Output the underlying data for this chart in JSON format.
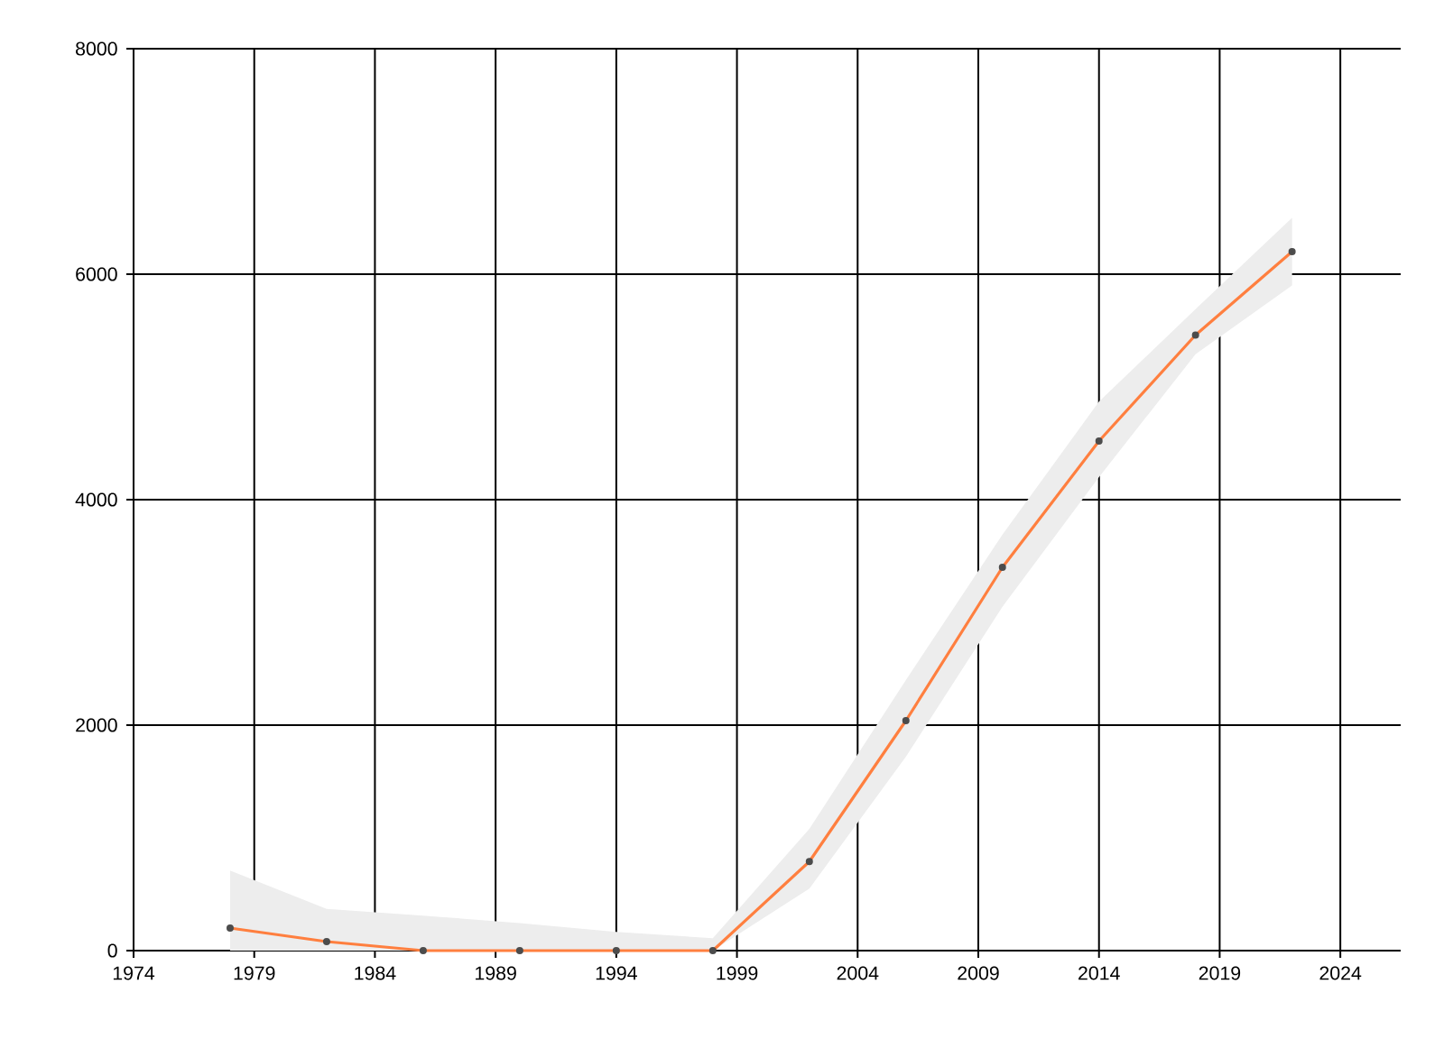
{
  "chart_data": {
    "type": "line",
    "x": [
      1978,
      1982,
      1986,
      1990,
      1994,
      1998,
      2002,
      2006,
      2010,
      2014,
      2018,
      2022
    ],
    "series": [
      {
        "color": "#ff7f3f",
        "values": [
          200,
          80,
          0,
          0,
          0,
          0,
          790,
          2040,
          3400,
          4520,
          5460,
          6200
        ],
        "lower": [
          0,
          0,
          0,
          0,
          0,
          0,
          550,
          1720,
          3050,
          4200,
          5290,
          5900
        ],
        "upper": [
          710,
          370,
          310,
          245,
          165,
          110,
          1080,
          2400,
          3690,
          4870,
          5690,
          6500
        ]
      }
    ],
    "xlim": [
      1974,
      2026.5
    ],
    "xticks": [
      1974,
      1979,
      1984,
      1989,
      1994,
      1999,
      2004,
      2009,
      2014,
      2019,
      2024
    ],
    "ylim": [
      0,
      8000
    ],
    "yticks": [
      0,
      2000,
      4000,
      6000,
      8000
    ],
    "grid": true,
    "marker": "circle",
    "line_style": "solid"
  }
}
